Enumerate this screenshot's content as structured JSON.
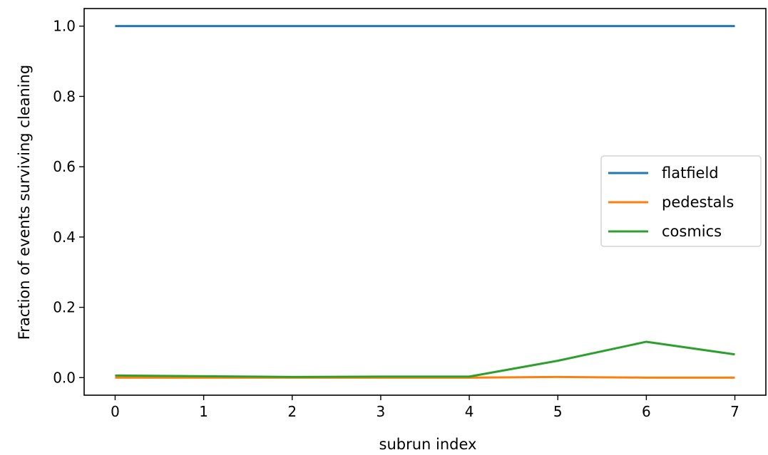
{
  "chart_data": {
    "type": "line",
    "x": [
      0,
      1,
      2,
      3,
      4,
      5,
      6,
      7
    ],
    "series": [
      {
        "name": "flatfield",
        "color": "#1f77b4",
        "values": [
          1.0,
          1.0,
          1.0,
          1.0,
          1.0,
          1.0,
          1.0,
          1.0
        ]
      },
      {
        "name": "pedestals",
        "color": "#ff7f0e",
        "values": [
          0.0,
          0.0,
          0.0,
          0.0,
          0.0,
          0.002,
          0.0,
          0.0
        ]
      },
      {
        "name": "cosmics",
        "color": "#2ca02c",
        "values": [
          0.006,
          0.004,
          0.002,
          0.003,
          0.003,
          0.048,
          0.102,
          0.066
        ]
      }
    ],
    "xlabel": "subrun index",
    "ylabel": "Fraction of events surviving cleaning",
    "xlim": [
      -0.35,
      7.35
    ],
    "ylim": [
      -0.05,
      1.05
    ],
    "xticks": [
      0,
      1,
      2,
      3,
      4,
      5,
      6,
      7
    ],
    "yticks": [
      0.0,
      0.2,
      0.4,
      0.6,
      0.8,
      1.0
    ],
    "ytick_labels": [
      "0.0",
      "0.2",
      "0.4",
      "0.6",
      "0.8",
      "1.0"
    ],
    "grid": false,
    "legend_position": "center-right"
  }
}
